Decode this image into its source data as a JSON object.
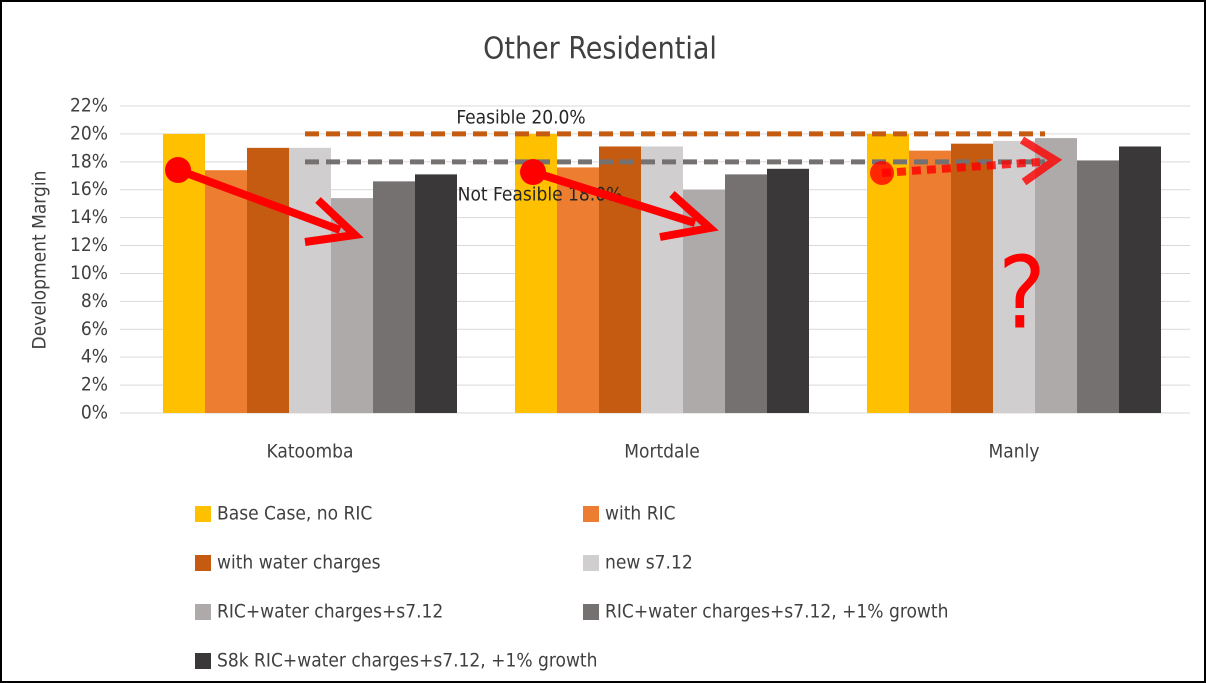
{
  "chart_data": {
    "type": "bar",
    "title": "Other Residential",
    "y_label": "Development Margin",
    "categories": [
      "Katoomba",
      "Mortdale",
      "Manly"
    ],
    "series": [
      {
        "name": "Base Case, no RIC",
        "color": "#ffc000",
        "values": [
          20.0,
          20.0,
          20.0
        ]
      },
      {
        "name": "with RIC",
        "color": "#ed7d31",
        "values": [
          17.4,
          17.6,
          18.8
        ]
      },
      {
        "name": "with water charges",
        "color": "#c55a11",
        "values": [
          19.0,
          19.1,
          19.3
        ]
      },
      {
        "name": "new s7.12",
        "color": "#d0cece",
        "values": [
          19.0,
          19.1,
          19.5
        ]
      },
      {
        "name": "RIC+water charges+s7.12",
        "color": "#aeaaaa",
        "values": [
          15.4,
          16.0,
          19.7
        ]
      },
      {
        "name": "RIC+water charges+s7.12, +1% growth",
        "color": "#767171",
        "values": [
          16.6,
          17.1,
          18.1
        ]
      },
      {
        "name": "S8k RIC+water charges+s7.12, +1% growth",
        "color": "#3a3838",
        "values": [
          17.1,
          17.5,
          19.1
        ]
      }
    ],
    "reference_lines": [
      {
        "label": "Feasible 20.0%",
        "value": 20.0,
        "color": "#c55a11"
      },
      {
        "label": "Not Feasible 18.0%",
        "value": 18.0,
        "color": "#767171"
      }
    ],
    "annotation": "?",
    "ylim": [
      0,
      22
    ],
    "yticks": [
      {
        "value": 0,
        "label": "0%"
      },
      {
        "value": 2,
        "label": "2%"
      },
      {
        "value": 4,
        "label": "4%"
      },
      {
        "value": 6,
        "label": "6%"
      },
      {
        "value": 8,
        "label": "8%"
      },
      {
        "value": 10,
        "label": "10%"
      },
      {
        "value": 12,
        "label": "12%"
      },
      {
        "value": 14,
        "label": "14%"
      },
      {
        "value": 16,
        "label": "16%"
      },
      {
        "value": 18,
        "label": "18%"
      },
      {
        "value": 20,
        "label": "20%"
      },
      {
        "value": 22,
        "label": "22%"
      }
    ],
    "grid": true
  }
}
